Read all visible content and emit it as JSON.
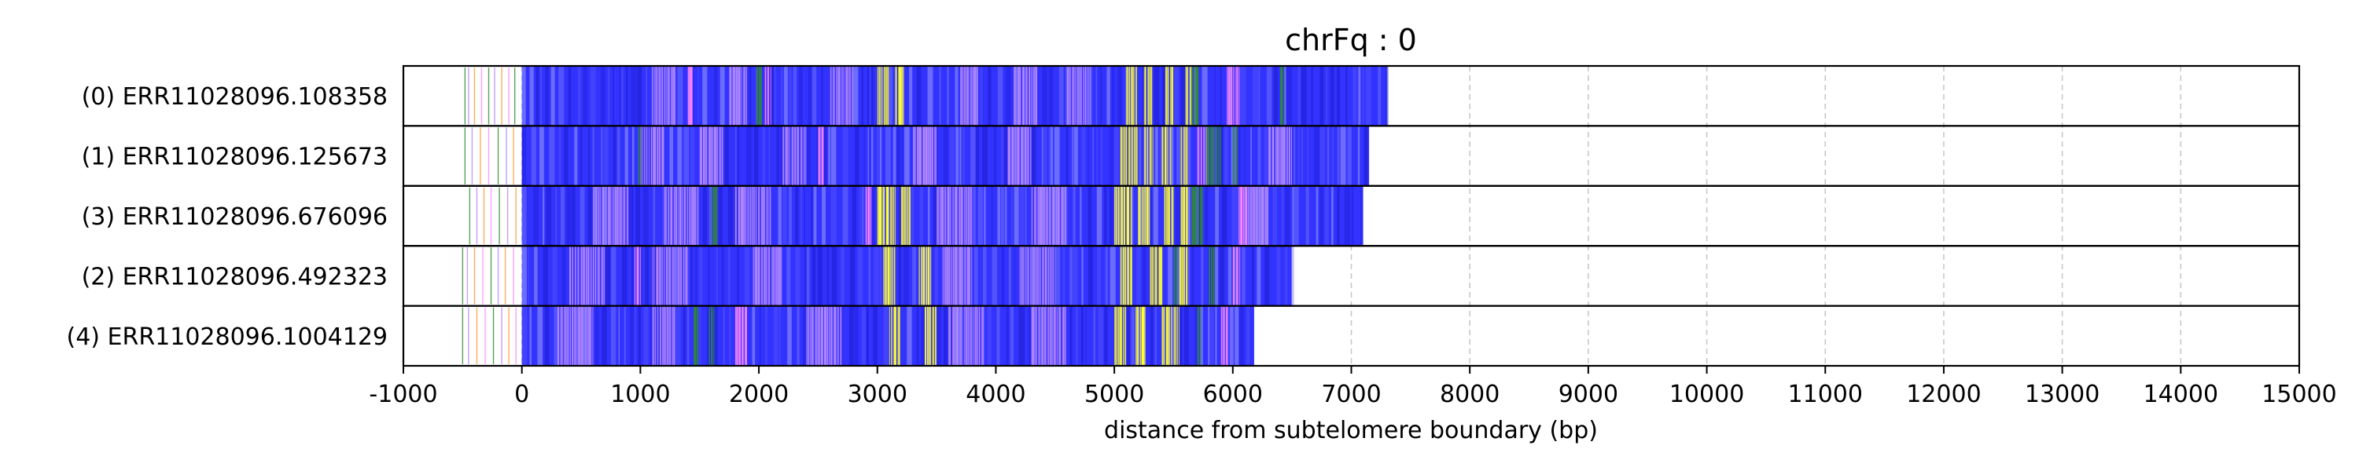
{
  "chart_data": {
    "type": "track",
    "title": "chrFq : 0",
    "xlabel": "distance from subtelomere boundary (bp)",
    "ylabel": "",
    "xlim": [
      -1000,
      15000
    ],
    "x_ticks": [
      -1000,
      0,
      1000,
      2000,
      3000,
      4000,
      5000,
      6000,
      7000,
      8000,
      9000,
      10000,
      11000,
      12000,
      13000,
      14000,
      15000
    ],
    "x_tick_labels": [
      "-1000",
      "0",
      "1000",
      "2000",
      "3000",
      "4000",
      "5000",
      "6000",
      "7000",
      "8000",
      "9000",
      "10000",
      "11000",
      "12000",
      "13000",
      "14000",
      "15000"
    ],
    "grid": "vertical dashed",
    "colors": {
      "main": "#3333ff",
      "highlight": "#ffff33",
      "accent_purple": "#b388ff",
      "accent_pink": "#ff88ff",
      "accent_green": "#2e8b2e",
      "accent_orange": "#ff9933",
      "grid": "#c8c8c8"
    },
    "reads": [
      {
        "label": "(0) ERR11028096.108358",
        "start": 0,
        "end": 7300,
        "prefix_lines": [
          -480,
          -450,
          -400,
          -340,
          -280,
          -230,
          -170,
          -110,
          -60
        ],
        "yellow": [
          [
            3000,
            3100
          ],
          [
            3150,
            3220
          ],
          [
            5100,
            5200
          ],
          [
            5250,
            5320
          ],
          [
            5430,
            5500
          ],
          [
            5600,
            5650
          ]
        ],
        "purple": [
          [
            1100,
            1300
          ],
          [
            1750,
            1900
          ],
          [
            2600,
            2800
          ],
          [
            3700,
            3850
          ],
          [
            4150,
            4350
          ],
          [
            4600,
            4800
          ]
        ],
        "pink": [
          [
            1400,
            1450
          ],
          [
            2050,
            2100
          ],
          [
            5950,
            6050
          ]
        ],
        "green": [
          [
            1980,
            2020
          ],
          [
            5650,
            5720
          ],
          [
            6400,
            6430
          ]
        ]
      },
      {
        "label": "(1) ERR11028096.125673",
        "start": 0,
        "end": 7150,
        "prefix_lines": [
          -480,
          -420,
          -350,
          -280,
          -200,
          -130,
          -70
        ],
        "yellow": [
          [
            5050,
            5200
          ],
          [
            5250,
            5330
          ],
          [
            5400,
            5480
          ],
          [
            5560,
            5620
          ]
        ],
        "purple": [
          [
            1000,
            1200
          ],
          [
            1500,
            1700
          ],
          [
            2200,
            2400
          ],
          [
            3300,
            3500
          ],
          [
            4100,
            4300
          ],
          [
            6300,
            6500
          ]
        ],
        "pink": [
          [
            2500,
            2550
          ],
          [
            5700,
            5780
          ]
        ],
        "green": [
          [
            980,
            1010
          ],
          [
            5780,
            5900
          ],
          [
            6000,
            6040
          ]
        ]
      },
      {
        "label": "(3) ERR11028096.676096",
        "start": 0,
        "end": 7100,
        "prefix_lines": [
          -440,
          -380,
          -320,
          -260,
          -190,
          -120,
          -50
        ],
        "yellow": [
          [
            3000,
            3150
          ],
          [
            3200,
            3280
          ],
          [
            5000,
            5150
          ],
          [
            5200,
            5300
          ],
          [
            5420,
            5500
          ],
          [
            5560,
            5620
          ]
        ],
        "purple": [
          [
            600,
            900
          ],
          [
            1200,
            1500
          ],
          [
            1800,
            2100
          ],
          [
            3500,
            3800
          ],
          [
            4300,
            4600
          ],
          [
            6100,
            6300
          ]
        ],
        "pink": [
          [
            2900,
            2950
          ],
          [
            6050,
            6120
          ]
        ],
        "green": [
          [
            1600,
            1650
          ],
          [
            5650,
            5750
          ]
        ]
      },
      {
        "label": "(2) ERR11028096.492323",
        "start": 0,
        "end": 6500,
        "prefix_lines": [
          -500,
          -460,
          -400,
          -330,
          -260,
          -200,
          -140,
          -70
        ],
        "yellow": [
          [
            3050,
            3150
          ],
          [
            3350,
            3450
          ],
          [
            5050,
            5150
          ],
          [
            5300,
            5400
          ],
          [
            5550,
            5620
          ]
        ],
        "purple": [
          [
            400,
            700
          ],
          [
            1100,
            1400
          ],
          [
            1950,
            2200
          ],
          [
            3550,
            3800
          ],
          [
            4200,
            4500
          ]
        ],
        "pink": [
          [
            950,
            1000
          ],
          [
            6000,
            6060
          ]
        ],
        "green": [
          [
            5500,
            5550
          ],
          [
            5800,
            5850
          ]
        ]
      },
      {
        "label": "(4) ERR11028096.1004129",
        "start": 0,
        "end": 6180,
        "prefix_lines": [
          -500,
          -450,
          -380,
          -310,
          -240,
          -170,
          -110,
          -50
        ],
        "yellow": [
          [
            3100,
            3200
          ],
          [
            3400,
            3500
          ],
          [
            5000,
            5100
          ],
          [
            5180,
            5260
          ],
          [
            5400,
            5480
          ],
          [
            5500,
            5550
          ]
        ],
        "purple": [
          [
            300,
            600
          ],
          [
            1100,
            1300
          ],
          [
            2400,
            2700
          ],
          [
            3600,
            3900
          ],
          [
            4300,
            4600
          ]
        ],
        "pink": [
          [
            1800,
            1900
          ],
          [
            5900,
            5960
          ]
        ],
        "green": [
          [
            1450,
            1500
          ],
          [
            1580,
            1620
          ],
          [
            5700,
            5740
          ]
        ]
      }
    ]
  }
}
